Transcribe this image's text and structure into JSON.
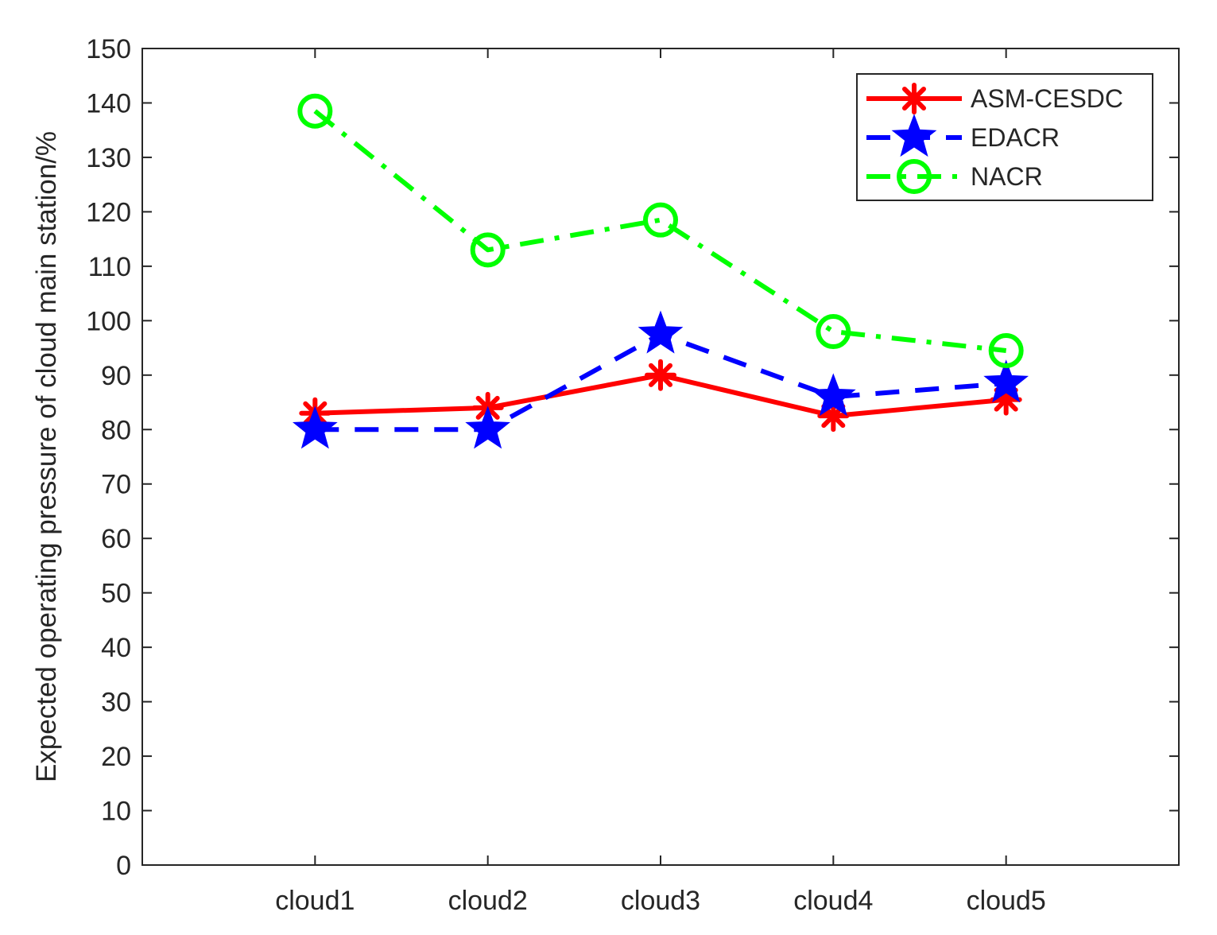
{
  "chart_data": {
    "type": "line",
    "title": "",
    "xlabel": "",
    "ylabel": "Expected operating pressure of cloud main station/%",
    "categories": [
      "cloud1",
      "cloud2",
      "cloud3",
      "cloud4",
      "cloud5"
    ],
    "ylim": [
      0,
      150
    ],
    "yticks": [
      0,
      10,
      20,
      30,
      40,
      50,
      60,
      70,
      80,
      90,
      100,
      110,
      120,
      130,
      140,
      150
    ],
    "grid": false,
    "legend_position": "top-right",
    "series": [
      {
        "name": "ASM-CESDC",
        "values": [
          83,
          84,
          90,
          82.5,
          85.5
        ],
        "color": "#ff0000",
        "line_style": "solid",
        "marker": "asterisk"
      },
      {
        "name": "EDACR",
        "values": [
          80,
          80,
          97.5,
          86,
          88.5
        ],
        "color": "#0000ff",
        "line_style": "dashed",
        "marker": "star"
      },
      {
        "name": "NACR",
        "values": [
          138.5,
          113,
          118.5,
          98,
          94.5
        ],
        "color": "#00ff00",
        "line_style": "dashdot",
        "marker": "circle"
      }
    ]
  }
}
